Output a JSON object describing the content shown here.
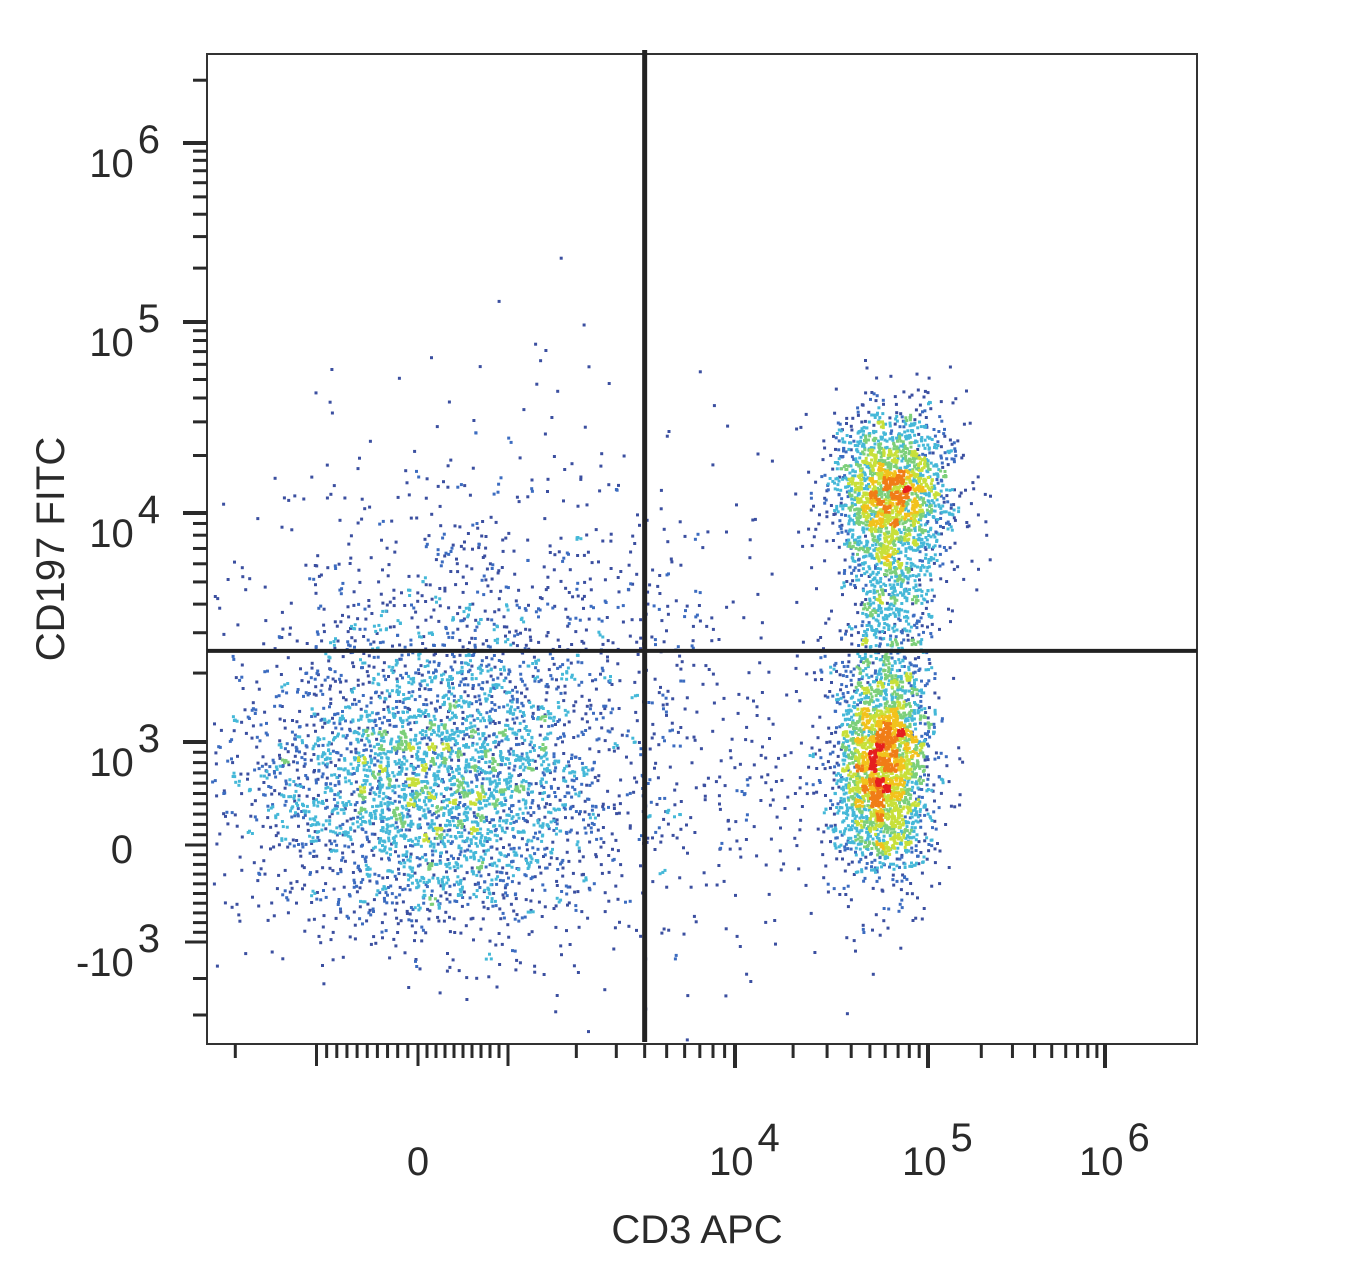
{
  "chart_data": {
    "type": "scatter",
    "subtype": "flow-cytometry-density-dot-plot",
    "title": "",
    "xlabel": "CD3 APC",
    "ylabel": "CD197 FITC",
    "x_scale": "biexponential",
    "y_scale": "biexponential",
    "xlim": [
      -2000,
      1500000
    ],
    "ylim": [
      -3000,
      2500000
    ],
    "x_ticks": [
      {
        "value": 0,
        "label": "0"
      },
      {
        "value": 10000,
        "label": "10",
        "exp": "4"
      },
      {
        "value": 100000,
        "label": "10",
        "exp": "5"
      },
      {
        "value": 1000000,
        "label": "10",
        "exp": "6"
      }
    ],
    "y_ticks": [
      {
        "value": -1000,
        "label": "-10",
        "exp": "3"
      },
      {
        "value": 0,
        "label": "0"
      },
      {
        "value": 1000,
        "label": "10",
        "exp": "3"
      },
      {
        "value": 10000,
        "label": "10",
        "exp": "4"
      },
      {
        "value": 100000,
        "label": "10",
        "exp": "5"
      },
      {
        "value": 1000000,
        "label": "10",
        "exp": "6"
      }
    ],
    "quadrant_gate": {
      "x": 4000,
      "y": 2500
    },
    "populations": [
      {
        "x_center": 600,
        "y_center": 500,
        "x_spread": 1500,
        "y_spread": 0.45,
        "peak_density": "medium"
      },
      {
        "x_center": 65000,
        "y_center": 600,
        "x_spread": 0.12,
        "y_spread": 0.35,
        "peak_density": "high"
      },
      {
        "x_center": 75000,
        "y_center": 12000,
        "x_spread": 0.13,
        "y_spread": 0.22,
        "peak_density": "medium-high"
      }
    ],
    "density_colors": [
      "#3b4fa0",
      "#3c6cc0",
      "#45b8d8",
      "#7ccf7a",
      "#c8e03a",
      "#f2c21c",
      "#f07d17",
      "#e51f1f"
    ],
    "grid": false,
    "legend": "none"
  }
}
